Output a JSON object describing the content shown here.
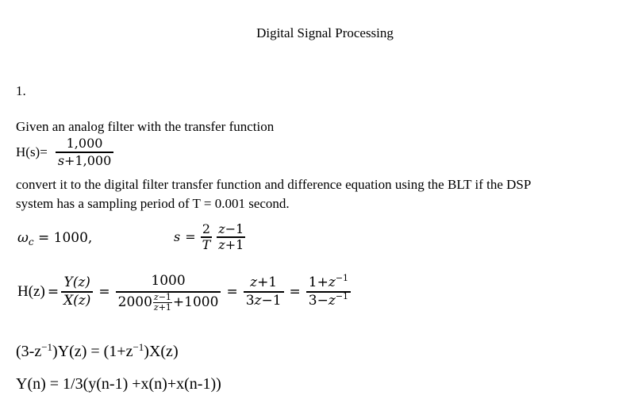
{
  "doc": {
    "title": "Digital Signal Processing",
    "problem_number": "1.",
    "intro": "Given an analog filter with the transfer function",
    "hs": {
      "lhs": "H(s)=",
      "num": "1,000",
      "den_var": "s",
      "den_rest": "+1,000"
    },
    "task": {
      "line1": "convert it to the digital filter transfer function and difference equation using the BLT if the DSP",
      "line2": "system has a sampling period of T = 0.001 second."
    },
    "omega": {
      "symbol": "ω",
      "subscript": "c",
      "rest": " = 1000,"
    },
    "bilinear": {
      "lhs": "s",
      "eq": "=",
      "frac_2T": {
        "num": "2",
        "den": "T"
      },
      "frac_z": {
        "num_var": "z",
        "num_rest": "−1",
        "den_var": "z",
        "den_rest": "+1"
      }
    },
    "hz": {
      "lhs": "H(z)",
      "eq1": "=",
      "frac_yx": {
        "num": "Y(z)",
        "den": "X(z)"
      },
      "eq2": "=",
      "frac_big": {
        "num": "1000",
        "den_pre": "2000",
        "den_frac": {
          "num_var": "z",
          "num_rest": "−1",
          "den_var": "z",
          "den_rest": "+1"
        },
        "den_post": "+1000"
      },
      "eq3": "=",
      "frac_z1": {
        "num_var": "z",
        "num_rest": "+1",
        "den_pre": "3",
        "den_var": "z",
        "den_rest": "−1"
      },
      "eq4": "=",
      "frac_zinv": {
        "num_pre": "1+",
        "num_var": "z",
        "num_sup": "−1",
        "den_pre": "3−",
        "den_var": "z",
        "den_sup": "−1"
      }
    },
    "zdomain": {
      "p1": "(3-z",
      "sup1": "−1",
      "p2": ")Y(z) = (1+z",
      "sup2": "−1",
      "p3": ")X(z)"
    },
    "difference": "Y(n) = 1/3(y(n-1) +x(n)+x(n-1))"
  }
}
